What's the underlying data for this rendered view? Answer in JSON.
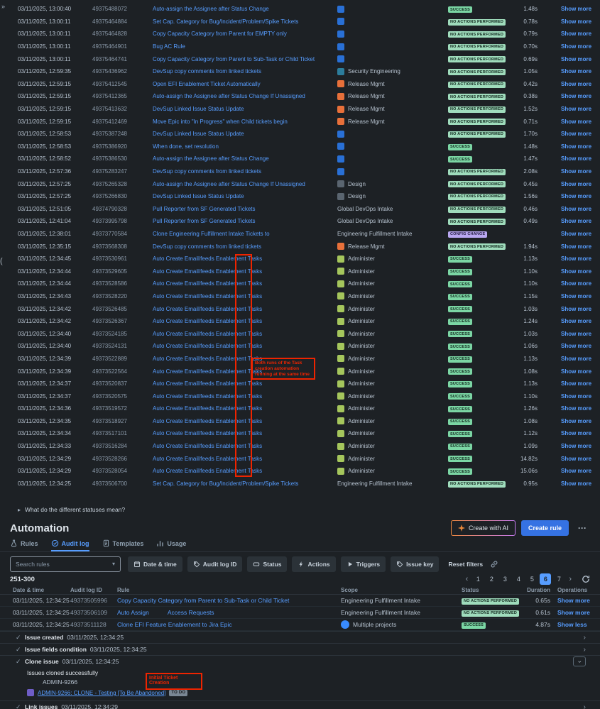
{
  "colors": {
    "background": "#1d2125",
    "link": "#579dff",
    "success_badge": "#7bd6a4",
    "noop_badge": "#9fdcbc",
    "config_badge": "#b8a7f0",
    "annotation_red": "#ee2400",
    "primary_button": "#3572e3",
    "active_page": "#579dff"
  },
  "scope_icon_colors": {
    "jsw": "#2970d6",
    "sec": "#2c7d9c",
    "rel": "#e8703a",
    "des": "#5a6570",
    "adm": "#a5c65c",
    "globe": "#388bff"
  },
  "artifacts": {
    "panel_expand": "»",
    "left_paren": "("
  },
  "audit_table": {
    "rows": [
      {
        "date": "03/11/2025, 13:00:40",
        "id": "49375488072",
        "rule": "Auto-assign the Assignee after Status Change",
        "icon": "jsw",
        "scope": "",
        "status": "SUCCESS",
        "duration": "1.48s",
        "operation": "Show more"
      },
      {
        "date": "03/11/2025, 13:00:11",
        "id": "49375464884",
        "rule": "Set Cap. Category for Bug/Incident/Problem/Spike Tickets",
        "icon": "jsw",
        "scope": "",
        "status": "NO ACTIONS PERFORMED",
        "duration": "0.78s",
        "operation": "Show more"
      },
      {
        "date": "03/11/2025, 13:00:11",
        "id": "49375464828",
        "rule": "Copy Capacity Category from Parent for EMPTY only",
        "icon": "jsw",
        "scope": "",
        "status": "NO ACTIONS PERFORMED",
        "duration": "0.79s",
        "operation": "Show more"
      },
      {
        "date": "03/11/2025, 13:00:11",
        "id": "49375464901",
        "rule": "Bug AC Rule",
        "icon": "jsw",
        "scope": "",
        "status": "NO ACTIONS PERFORMED",
        "duration": "0.70s",
        "operation": "Show more"
      },
      {
        "date": "03/11/2025, 13:00:11",
        "id": "49375464741",
        "rule": "Copy Capacity Category from Parent to Sub-Task or Child Ticket",
        "icon": "jsw",
        "scope": "",
        "status": "NO ACTIONS PERFORMED",
        "duration": "0.69s",
        "operation": "Show more"
      },
      {
        "date": "03/11/2025, 12:59:35",
        "id": "49375436962",
        "rule": "DevSup copy comments from linked tickets",
        "icon": "sec",
        "scope": "Security Engineering",
        "status": "NO ACTIONS PERFORMED",
        "duration": "1.05s",
        "operation": "Show more"
      },
      {
        "date": "03/11/2025, 12:59:15",
        "id": "49375412545",
        "rule": "Open EFI Enablement Ticket Automatically",
        "icon": "rel",
        "scope": "Release Mgmt",
        "status": "NO ACTIONS PERFORMED",
        "duration": "0.42s",
        "operation": "Show more"
      },
      {
        "date": "03/11/2025, 12:59:15",
        "id": "49375412365",
        "rule": "Auto-assign the Assignee after Status Change If Unassigned",
        "icon": "rel",
        "scope": "Release Mgmt",
        "status": "NO ACTIONS PERFORMED",
        "duration": "0.38s",
        "operation": "Show more"
      },
      {
        "date": "03/11/2025, 12:59:15",
        "id": "49375413632",
        "rule": "DevSup Linked Issue Status Update",
        "icon": "rel",
        "scope": "Release Mgmt",
        "status": "NO ACTIONS PERFORMED",
        "duration": "1.52s",
        "operation": "Show more"
      },
      {
        "date": "03/11/2025, 12:59:15",
        "id": "49375412469",
        "rule": "Move Epic into \"In Progress\" when Child tickets begin",
        "icon": "rel",
        "scope": "Release Mgmt",
        "status": "NO ACTIONS PERFORMED",
        "duration": "0.71s",
        "operation": "Show more"
      },
      {
        "date": "03/11/2025, 12:58:53",
        "id": "49375387248",
        "rule": "DevSup Linked Issue Status Update",
        "icon": "jsw",
        "scope": "",
        "status": "NO ACTIONS PERFORMED",
        "duration": "1.70s",
        "operation": "Show more"
      },
      {
        "date": "03/11/2025, 12:58:53",
        "id": "49375386920",
        "rule": "When done, set resolution",
        "icon": "jsw",
        "scope": "",
        "status": "SUCCESS",
        "duration": "1.48s",
        "operation": "Show more"
      },
      {
        "date": "03/11/2025, 12:58:52",
        "id": "49375386530",
        "rule": "Auto-assign the Assignee after Status Change",
        "icon": "jsw",
        "scope": "",
        "status": "SUCCESS",
        "duration": "1.47s",
        "operation": "Show more"
      },
      {
        "date": "03/11/2025, 12:57:36",
        "id": "49375283247",
        "rule": "DevSup copy comments from linked tickets",
        "icon": "jsw",
        "scope": "",
        "status": "NO ACTIONS PERFORMED",
        "duration": "2.08s",
        "operation": "Show more"
      },
      {
        "date": "03/11/2025, 12:57:25",
        "id": "49375265328",
        "rule": "Auto-assign the Assignee after Status Change If Unassigned",
        "icon": "des",
        "scope": "Design",
        "status": "NO ACTIONS PERFORMED",
        "duration": "0.45s",
        "operation": "Show more"
      },
      {
        "date": "03/11/2025, 12:57:25",
        "id": "49375266830",
        "rule": "DevSup Linked Issue Status Update",
        "icon": "des",
        "scope": "Design",
        "status": "NO ACTIONS PERFORMED",
        "duration": "1.56s",
        "operation": "Show more"
      },
      {
        "date": "03/11/2025, 12:51:05",
        "id": "49374790328",
        "rule": "Pull Reporter from SF Generated Tickets",
        "icon": "none",
        "scope": "Global DevOps Intake",
        "status": "NO ACTIONS PERFORMED",
        "duration": "0.46s",
        "operation": "Show more"
      },
      {
        "date": "03/11/2025, 12:41:04",
        "id": "49373995798",
        "rule": "Pull Reporter from SF Generated Tickets",
        "icon": "none",
        "scope": "Global DevOps Intake",
        "status": "NO ACTIONS PERFORMED",
        "duration": "0.49s",
        "operation": "Show more"
      },
      {
        "date": "03/11/2025, 12:38:01",
        "id": "49373770584",
        "rule": "Clone Engineering Fulfillment Intake Tickets to",
        "icon": "none",
        "scope": "Engineering Fulfillment Intake",
        "status": "CONFIG CHANGE",
        "duration": "",
        "operation": "Show more"
      },
      {
        "date": "03/11/2025, 12:35:15",
        "id": "49373568308",
        "rule": "DevSup copy comments from linked tickets",
        "icon": "rel",
        "scope": "Release Mgmt",
        "status": "NO ACTIONS PERFORMED",
        "duration": "1.94s",
        "operation": "Show more"
      },
      {
        "date": "03/11/2025, 12:34:45",
        "id": "49373530961",
        "rule": "Auto Create Email/feeds Enablement Tasks",
        "icon": "adm",
        "scope": "Administer",
        "status": "SUCCESS",
        "duration": "1.13s",
        "operation": "Show more"
      },
      {
        "date": "03/11/2025, 12:34:44",
        "id": "49373529605",
        "rule": "Auto Create Email/feeds Enablement Tasks",
        "icon": "adm",
        "scope": "Administer",
        "status": "SUCCESS",
        "duration": "1.10s",
        "operation": "Show more"
      },
      {
        "date": "03/11/2025, 12:34:44",
        "id": "49373528586",
        "rule": "Auto Create Email/feeds Enablement Tasks",
        "icon": "adm",
        "scope": "Administer",
        "status": "SUCCESS",
        "duration": "1.10s",
        "operation": "Show more"
      },
      {
        "date": "03/11/2025, 12:34:43",
        "id": "49373528220",
        "rule": "Auto Create Email/feeds Enablement Tasks",
        "icon": "adm",
        "scope": "Administer",
        "status": "SUCCESS",
        "duration": "1.15s",
        "operation": "Show more"
      },
      {
        "date": "03/11/2025, 12:34:42",
        "id": "49373526485",
        "rule": "Auto Create Email/feeds Enablement Tasks",
        "icon": "adm",
        "scope": "Administer",
        "status": "SUCCESS",
        "duration": "1.03s",
        "operation": "Show more"
      },
      {
        "date": "03/11/2025, 12:34:42",
        "id": "49373526367",
        "rule": "Auto Create Email/feeds Enablement Tasks",
        "icon": "adm",
        "scope": "Administer",
        "status": "SUCCESS",
        "duration": "1.24s",
        "operation": "Show more"
      },
      {
        "date": "03/11/2025, 12:34:40",
        "id": "49373524185",
        "rule": "Auto Create Email/feeds Enablement Tasks",
        "icon": "adm",
        "scope": "Administer",
        "status": "SUCCESS",
        "duration": "1.03s",
        "operation": "Show more"
      },
      {
        "date": "03/11/2025, 12:34:40",
        "id": "49373524131",
        "rule": "Auto Create Email/feeds Enablement Tasks",
        "icon": "adm",
        "scope": "Administer",
        "status": "SUCCESS",
        "duration": "1.06s",
        "operation": "Show more"
      },
      {
        "date": "03/11/2025, 12:34:39",
        "id": "49373522889",
        "rule": "Auto Create Email/feeds Enablement Tasks",
        "icon": "adm",
        "scope": "Administer",
        "status": "SUCCESS",
        "duration": "1.13s",
        "operation": "Show more"
      },
      {
        "date": "03/11/2025, 12:34:39",
        "id": "49373522564",
        "rule": "Auto Create Email/feeds Enablement Tasks",
        "icon": "adm",
        "scope": "Administer",
        "status": "SUCCESS",
        "duration": "1.08s",
        "operation": "Show more"
      },
      {
        "date": "03/11/2025, 12:34:37",
        "id": "49373520837",
        "rule": "Auto Create Email/feeds Enablement Tasks",
        "icon": "adm",
        "scope": "Administer",
        "status": "SUCCESS",
        "duration": "1.13s",
        "operation": "Show more"
      },
      {
        "date": "03/11/2025, 12:34:37",
        "id": "49373520575",
        "rule": "Auto Create Email/feeds Enablement Tasks",
        "icon": "adm",
        "scope": "Administer",
        "status": "SUCCESS",
        "duration": "1.10s",
        "operation": "Show more"
      },
      {
        "date": "03/11/2025, 12:34:36",
        "id": "49373519572",
        "rule": "Auto Create Email/feeds Enablement Tasks",
        "icon": "adm",
        "scope": "Administer",
        "status": "SUCCESS",
        "duration": "1.26s",
        "operation": "Show more"
      },
      {
        "date": "03/11/2025, 12:34:35",
        "id": "49373518927",
        "rule": "Auto Create Email/feeds Enablement Tasks",
        "icon": "adm",
        "scope": "Administer",
        "status": "SUCCESS",
        "duration": "1.08s",
        "operation": "Show more"
      },
      {
        "date": "03/11/2025, 12:34:34",
        "id": "49373517101",
        "rule": "Auto Create Email/feeds Enablement Tasks",
        "icon": "adm",
        "scope": "Administer",
        "status": "SUCCESS",
        "duration": "1.12s",
        "operation": "Show more"
      },
      {
        "date": "03/11/2025, 12:34:33",
        "id": "49373516284",
        "rule": "Auto Create Email/feeds Enablement Tasks",
        "icon": "adm",
        "scope": "Administer",
        "status": "SUCCESS",
        "duration": "1.09s",
        "operation": "Show more"
      },
      {
        "date": "03/11/2025, 12:34:29",
        "id": "49373528266",
        "rule": "Auto Create Email/feeds Enablement Tasks",
        "icon": "adm",
        "scope": "Administer",
        "status": "SUCCESS",
        "duration": "14.82s",
        "operation": "Show more"
      },
      {
        "date": "03/11/2025, 12:34:29",
        "id": "49373528054",
        "rule": "Auto Create Email/feeds Enablement Tasks",
        "icon": "adm",
        "scope": "Administer",
        "status": "SUCCESS",
        "duration": "15.06s",
        "operation": "Show more"
      },
      {
        "date": "03/11/2025, 12:34:25",
        "id": "49373506700",
        "rule": "Set Cap. Category for Bug/Incident/Problem/Spike Tickets",
        "icon": "none",
        "scope": "Engineering Fulfillment Intake",
        "status": "NO ACTIONS PERFORMED",
        "duration": "0.95s",
        "operation": "Show more"
      }
    ]
  },
  "help": {
    "question": "What do the different statuses mean?"
  },
  "header": {
    "title": "Automation",
    "create_ai": "Create with AI",
    "create_rule": "Create rule",
    "more": "···"
  },
  "tabs": [
    {
      "label": "Rules",
      "icon": "flask",
      "active": false
    },
    {
      "label": "Audit log",
      "icon": "check-circle",
      "active": true
    },
    {
      "label": "Templates",
      "icon": "doc",
      "active": false
    },
    {
      "label": "Usage",
      "icon": "chart",
      "active": false
    }
  ],
  "filters": {
    "search_placeholder": "Search rules",
    "reset": "Reset filters",
    "buttons": [
      {
        "label": "Date & time",
        "icon": "calendar"
      },
      {
        "label": "Audit log ID",
        "icon": "tag"
      },
      {
        "label": "Status",
        "icon": "lozenge"
      },
      {
        "label": "Actions",
        "icon": "bolt"
      },
      {
        "label": "Triggers",
        "icon": "play"
      },
      {
        "label": "Issue key",
        "icon": "tag"
      }
    ]
  },
  "pagination": {
    "range": "251-300",
    "prev": "‹",
    "next": "›",
    "pages": [
      "1",
      "2",
      "3",
      "4",
      "5",
      "6",
      "7"
    ],
    "active": "6"
  },
  "bottom_table": {
    "headers": [
      "Date & time",
      "Audit log ID",
      "Rule",
      "Scope",
      "Status",
      "Duration",
      "Operations"
    ],
    "rows": [
      {
        "date": "03/11/2025, 12:34:25",
        "id": "49373505996",
        "rule": "Copy Capacity Category from Parent to Sub-Task or Child Ticket",
        "rule2": "",
        "icon": "none",
        "scope": "Engineering Fulfillment Intake",
        "status": "NO ACTIONS PERFORMED",
        "duration": "0.65s",
        "operation": "Show more"
      },
      {
        "date": "03/11/2025, 12:34:25",
        "id": "49373506109",
        "rule": "Auto Assign",
        "rule2": "Access Requests",
        "icon": "none",
        "scope": "Engineering Fulfillment Intake",
        "status": "NO ACTIONS PERFORMED",
        "duration": "0.61s",
        "operation": "Show more"
      },
      {
        "date": "03/11/2025, 12:34:25",
        "id": "49373511128",
        "rule": "Clone EFI Feature Enablement to Jira Epic",
        "rule2": "",
        "icon": "globe",
        "scope": "Multiple projects",
        "status": "SUCCESS",
        "duration": "4.87s",
        "operation": "Show less"
      }
    ]
  },
  "details": {
    "items": [
      {
        "label": "Issue created",
        "time": "03/11/2025, 12:34:25"
      },
      {
        "label": "Issue fields condition",
        "time": "03/11/2025, 12:34:25"
      },
      {
        "label": "Clone issue",
        "time": "03/11/2025, 12:34:25"
      },
      {
        "label": "Link issues",
        "time": "03/11/2025, 12:34:29"
      }
    ],
    "clone": {
      "message": "Issues cloned successfully",
      "issue_key": "ADMIN-9266",
      "link_text": "ADMIN-9266: CLONE - Testing [To Be Abandoned]",
      "status": "TO DO"
    }
  },
  "annotations": {
    "bracket_note": "Both runs of the Task creation automation running at the same time",
    "initial_note": "Initial Ticket Creation"
  }
}
